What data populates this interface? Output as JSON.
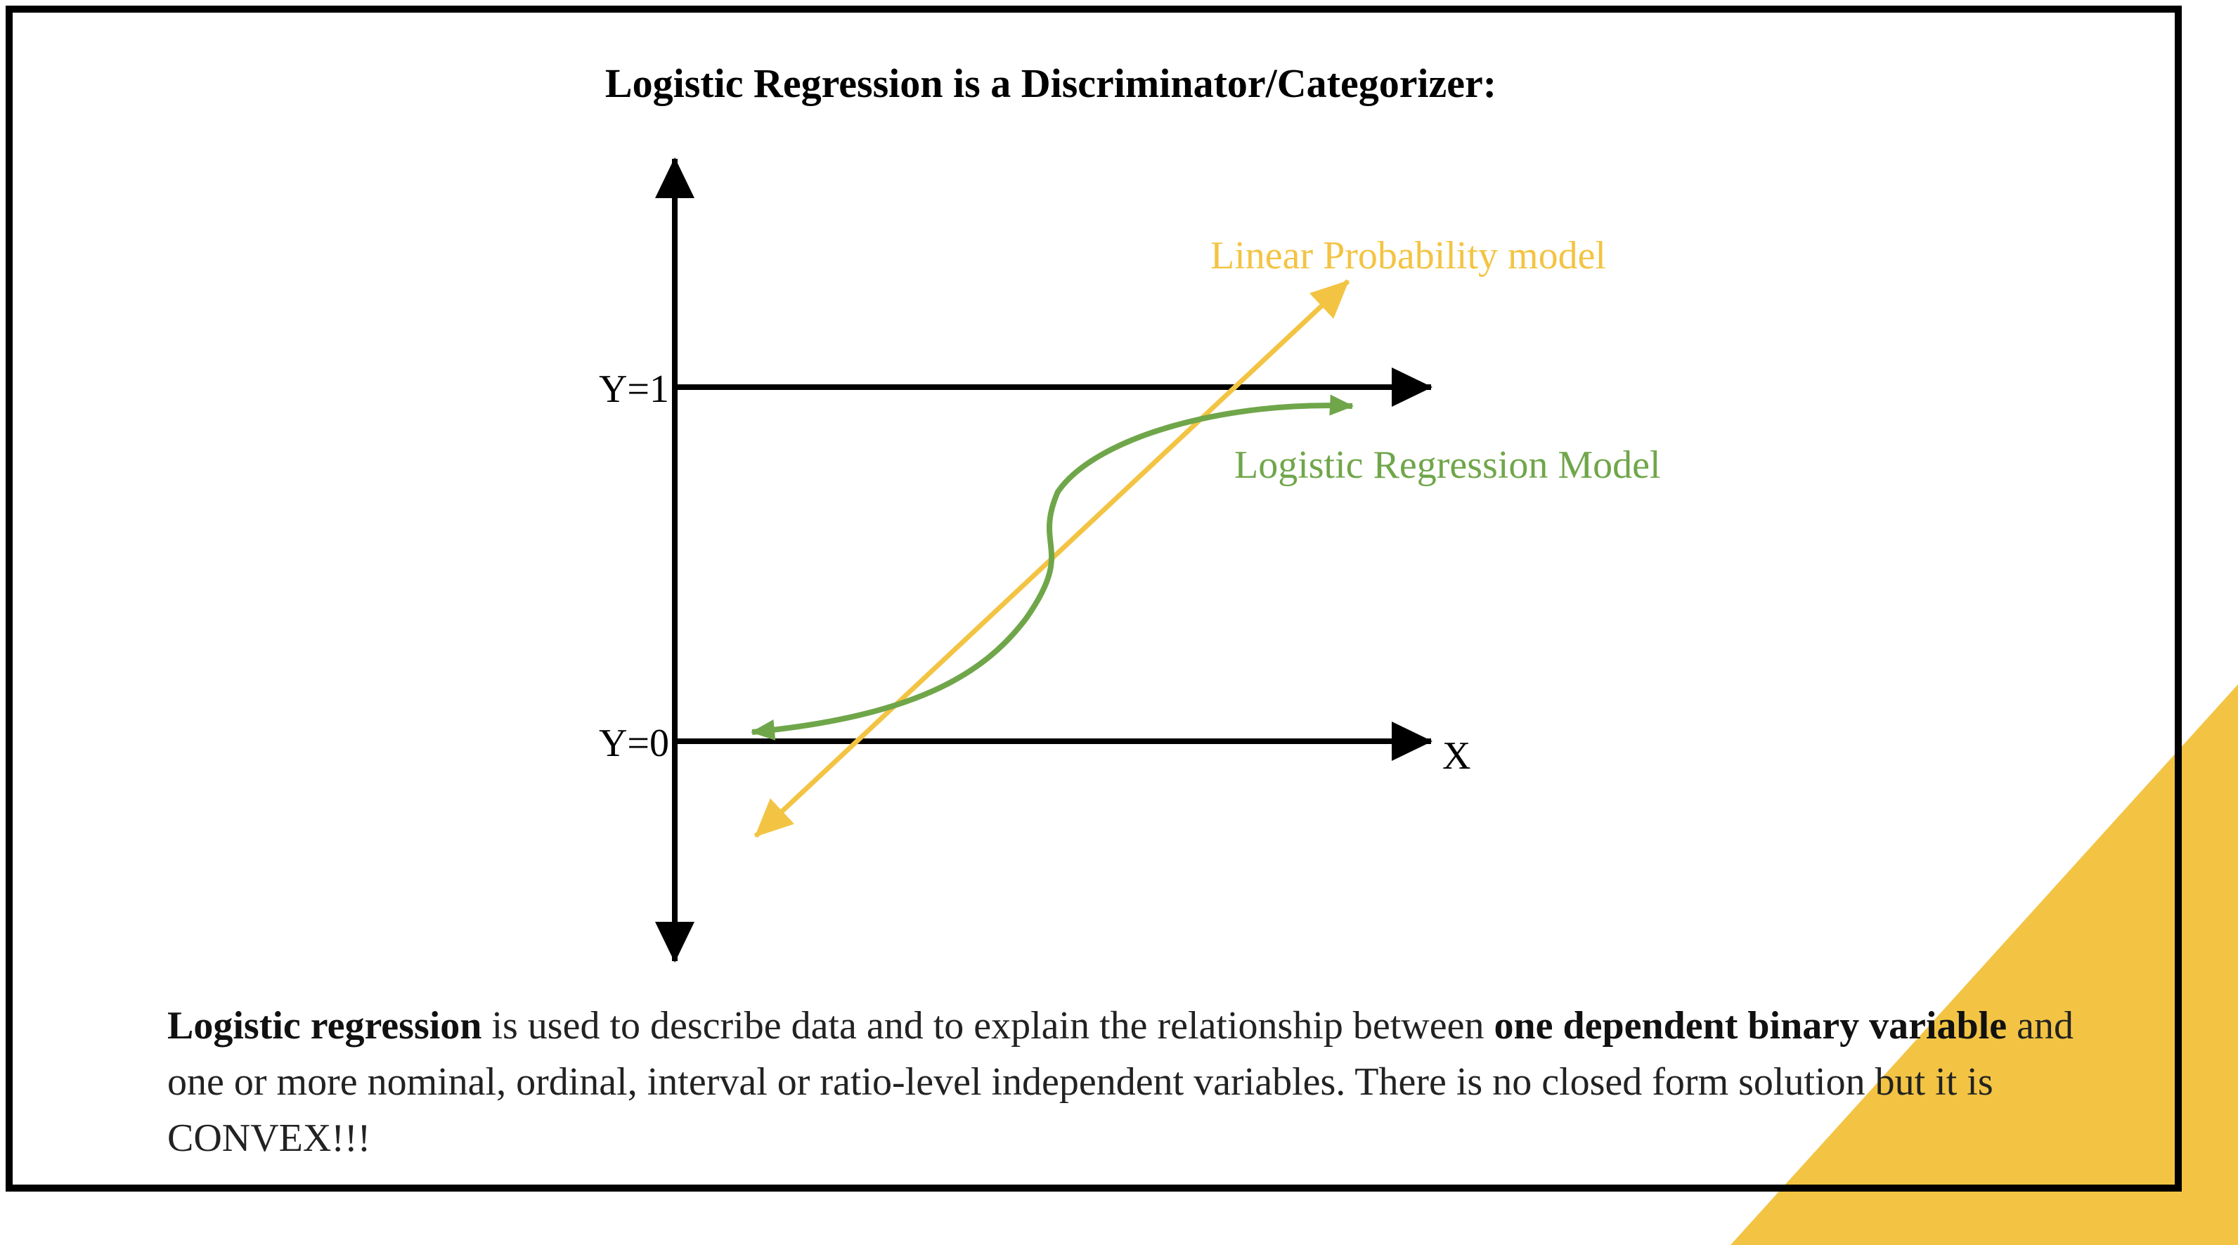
{
  "slide": {
    "title": "Logistic Regression is a Discriminator/Categorizer:",
    "colors": {
      "frame": "#000000",
      "accent_triangle": "#F3C443",
      "linear_model": "#F3C443",
      "logistic_model": "#70A64A",
      "axes": "#000000"
    }
  },
  "diagram": {
    "y1_label": "Y=1",
    "y0_label": "Y=0",
    "x_label": "X",
    "linear_model_label": "Linear Probability model",
    "logistic_model_label": "Logistic Regression Model"
  },
  "description": {
    "bold_1": "Logistic regression",
    "text_1": " is used to describe data and to explain the relationship between ",
    "bold_2": "one dependent binary variable",
    "text_2": " and one or more nominal, ordinal, interval or ratio-level independent variables. There is no closed form solution but it is CONVEX!!!"
  }
}
